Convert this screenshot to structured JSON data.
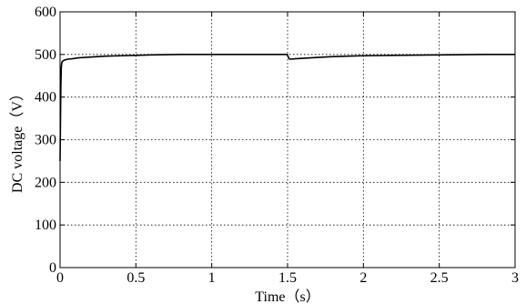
{
  "chart_data": {
    "type": "line",
    "title": "",
    "xlabel": "Time（s）",
    "ylabel": "DC voltage（V）",
    "xlim": [
      0,
      3
    ],
    "ylim": [
      0,
      600
    ],
    "xticks": [
      0,
      0.5,
      1,
      1.5,
      2,
      2.5,
      3
    ],
    "xtick_labels": [
      "0",
      "0.5",
      "1",
      "1.5",
      "2",
      "2.5",
      "3"
    ],
    "yticks": [
      0,
      100,
      200,
      300,
      400,
      500,
      600
    ],
    "ytick_labels": [
      "0",
      "100",
      "200",
      "300",
      "400",
      "500",
      "600"
    ],
    "grid": true,
    "series": [
      {
        "x": [
          0,
          0.002,
          0.005,
          0.008,
          0.012,
          0.02,
          0.03,
          0.05,
          0.08,
          0.12,
          0.2,
          0.3,
          0.4,
          0.5,
          0.6,
          0.7,
          0.8,
          1.0,
          1.2,
          1.4,
          1.498,
          1.502,
          1.51,
          1.52,
          1.55,
          1.6,
          1.7,
          1.8,
          1.9,
          2.0,
          2.2,
          2.5,
          2.8,
          3.0
        ],
        "y": [
          250,
          320,
          420,
          470,
          482,
          485,
          487,
          489,
          490,
          492,
          494,
          496,
          497,
          498,
          499,
          499.5,
          500,
          500,
          500,
          500,
          500,
          496,
          490,
          489,
          490,
          491,
          493,
          495,
          496,
          497,
          498,
          499,
          500,
          500
        ]
      }
    ]
  }
}
